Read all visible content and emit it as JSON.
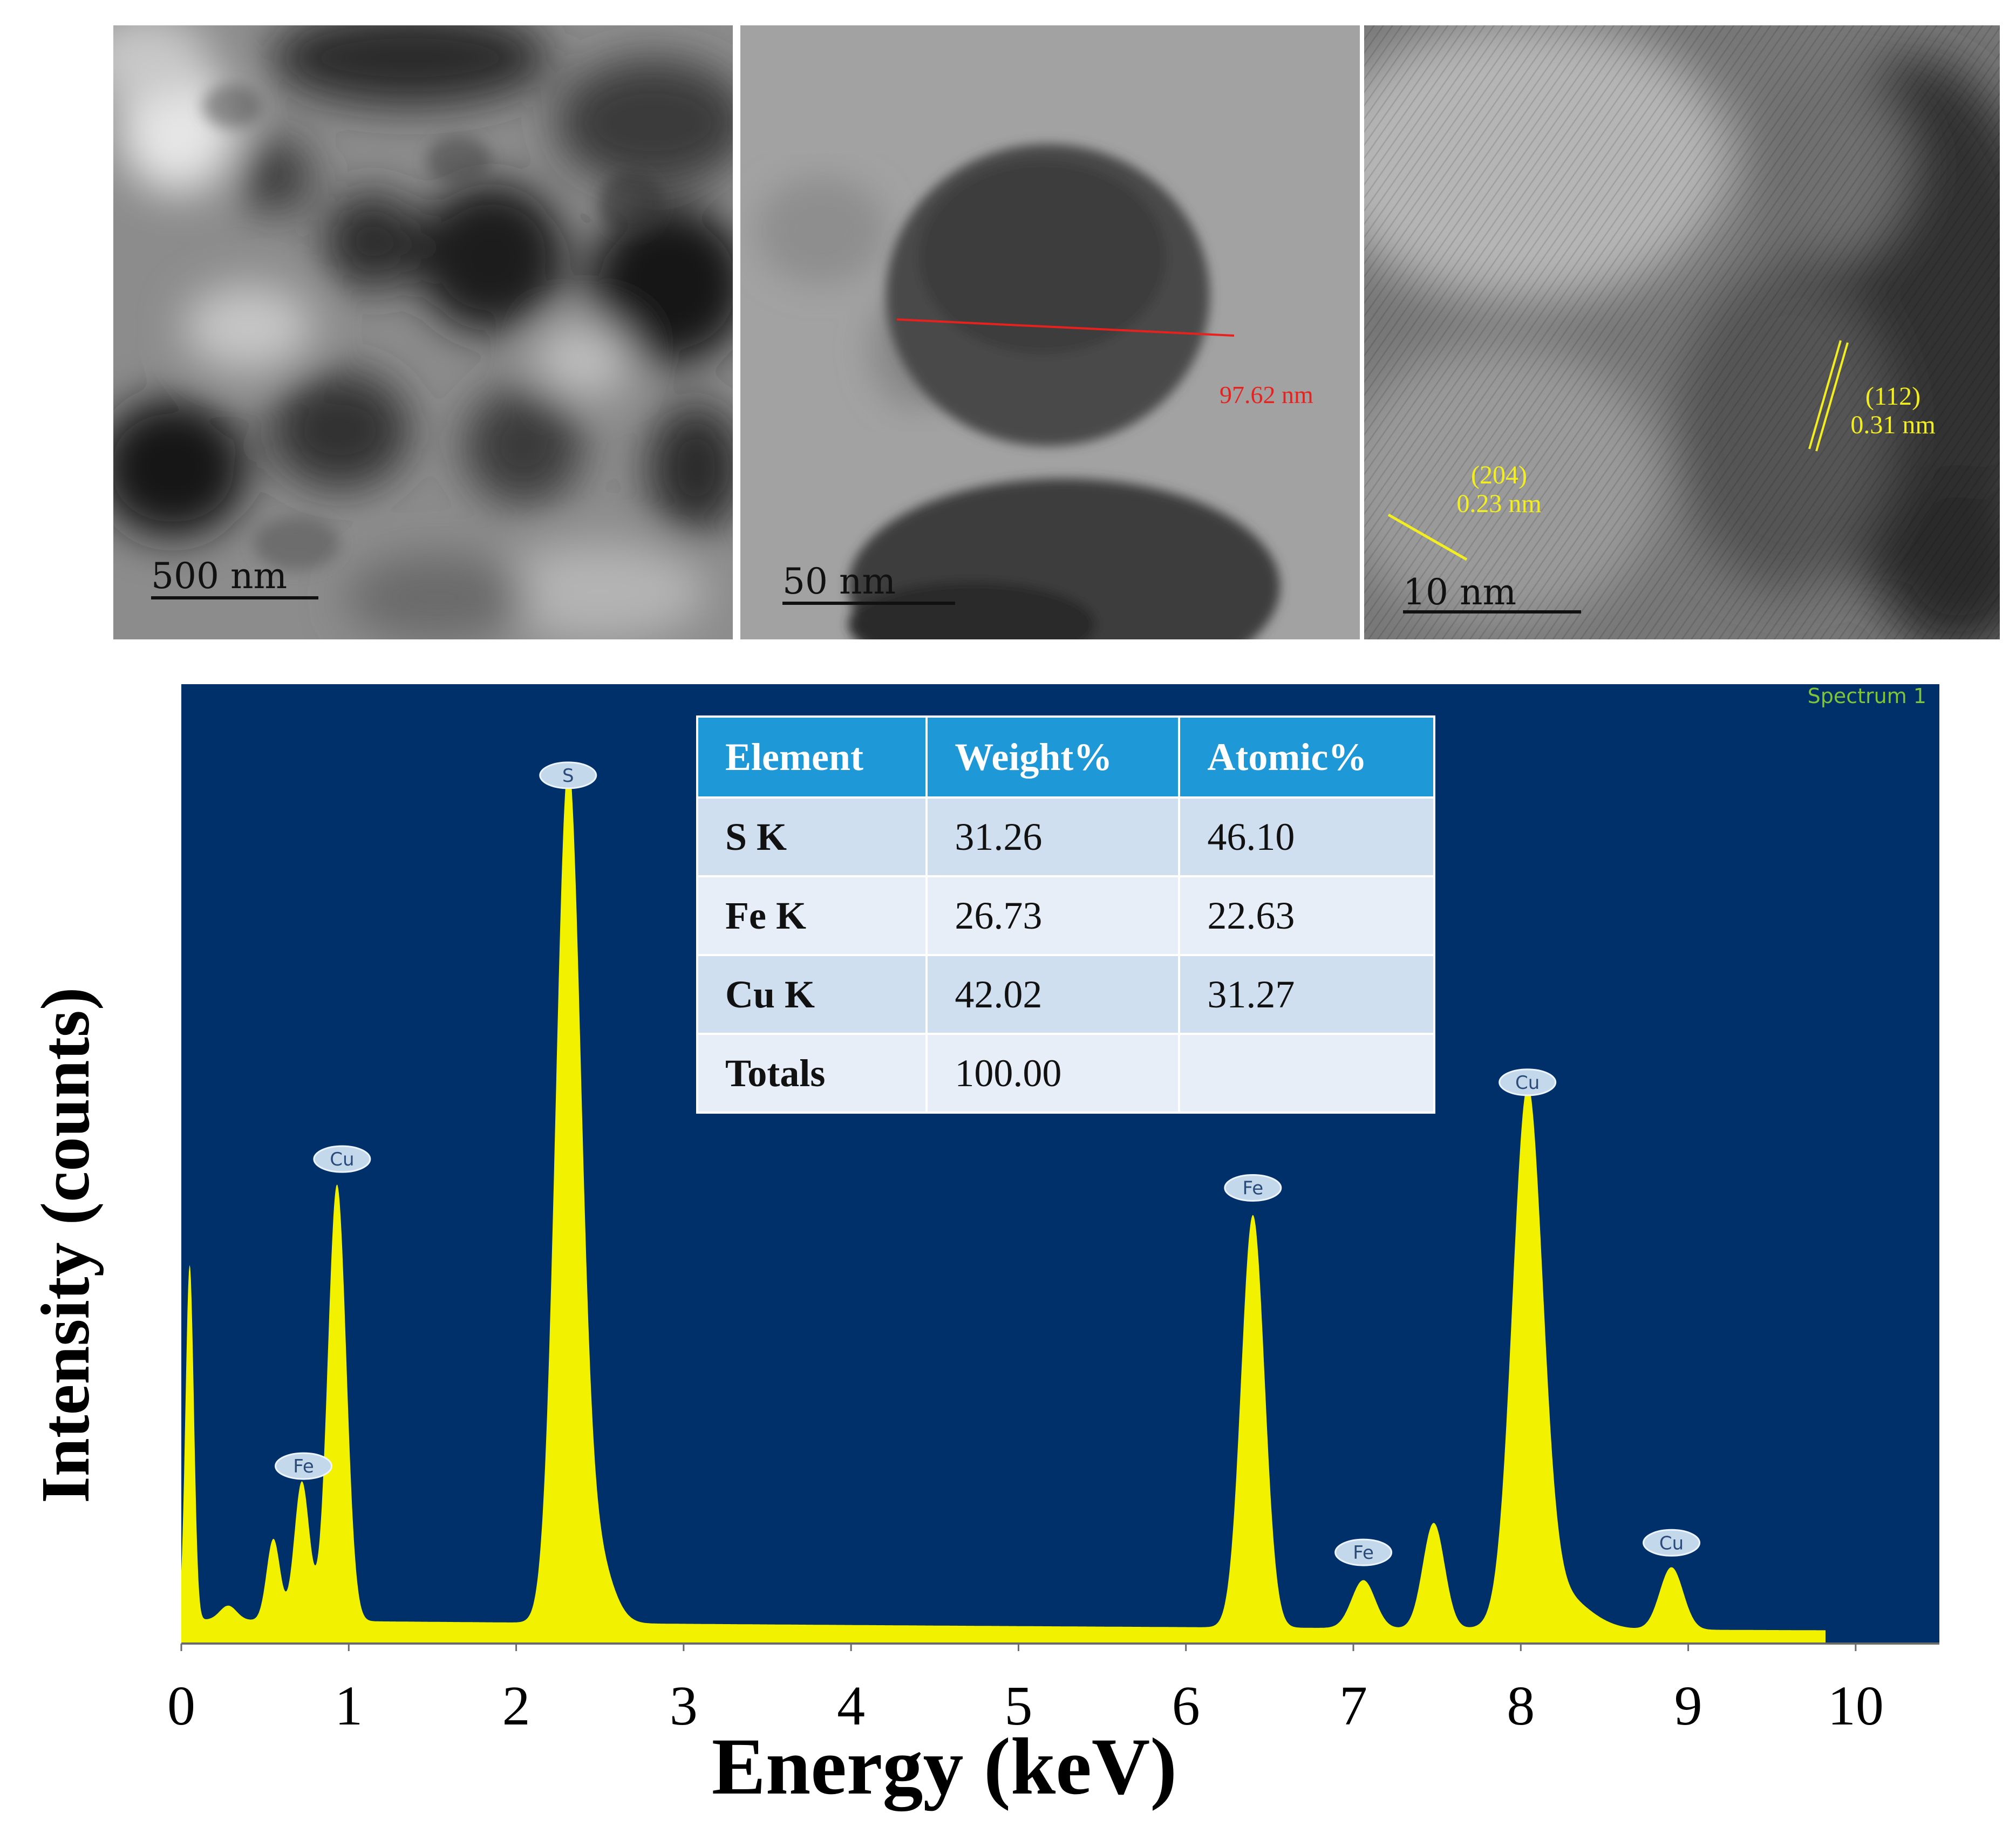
{
  "tem_panels": [
    {
      "scale_label": "500 nm"
    },
    {
      "scale_label": "50 nm",
      "measurement": "97.62 nm"
    },
    {
      "scale_label": "10 nm",
      "fringes": [
        {
          "plane": "(112)",
          "spacing": "0.31 nm"
        },
        {
          "plane": "(204)",
          "spacing": "0.23 nm"
        }
      ]
    }
  ],
  "colors": {
    "plot_bg": "#00306a",
    "spectrum": "#f2f200",
    "table_header": "#1e98d6",
    "measure_line": "#e8211e",
    "fringe": "#f2ee20"
  },
  "chart_data": {
    "type": "area",
    "title": "",
    "spectrum_label": "Spectrum 1",
    "xlabel": "Energy (keV)",
    "ylabel": "Intensity (counts)",
    "xlim": [
      0,
      10.5
    ],
    "ylim": [
      0,
      100
    ],
    "x_ticks": [
      0,
      1,
      2,
      3,
      4,
      5,
      6,
      7,
      8,
      9,
      10
    ],
    "grid": false,
    "legend": "none",
    "baseline": 2,
    "spectrum_end": 9.82,
    "peaks": [
      {
        "x": 0.05,
        "height": 37,
        "width": 0.025
      },
      {
        "x": 0.28,
        "height": 1.5,
        "width": 0.05
      },
      {
        "x": 0.55,
        "height": 8.5,
        "width": 0.04
      },
      {
        "x": 0.72,
        "height": 14.5,
        "width": 0.045
      },
      {
        "x": 0.93,
        "height": 45.5,
        "width": 0.055
      },
      {
        "x": 2.31,
        "height": 87,
        "width": 0.075
      },
      {
        "x": 2.46,
        "height": 8,
        "width": 0.1
      },
      {
        "x": 6.4,
        "height": 43,
        "width": 0.07
      },
      {
        "x": 7.06,
        "height": 5,
        "width": 0.07
      },
      {
        "x": 7.48,
        "height": 11,
        "width": 0.065
      },
      {
        "x": 8.04,
        "height": 54,
        "width": 0.09
      },
      {
        "x": 8.2,
        "height": 4,
        "width": 0.18
      },
      {
        "x": 8.9,
        "height": 6.5,
        "width": 0.07
      }
    ],
    "peak_labels": [
      {
        "text": "Cu",
        "x": 0.96,
        "y": 50.5
      },
      {
        "text": "Fe",
        "x": 0.73,
        "y": 18.5
      },
      {
        "text": "S",
        "x": 2.31,
        "y": 90.5
      },
      {
        "text": "Fe",
        "x": 6.4,
        "y": 47.5
      },
      {
        "text": "Fe",
        "x": 7.06,
        "y": 9.5
      },
      {
        "text": "Cu",
        "x": 8.04,
        "y": 58.5
      },
      {
        "text": "Cu",
        "x": 8.9,
        "y": 10.5
      }
    ],
    "table": {
      "headers": [
        "Element",
        "Weight%",
        "Atomic%"
      ],
      "rows": [
        [
          "S K",
          "31.26",
          "46.10"
        ],
        [
          "Fe K",
          "26.73",
          "22.63"
        ],
        [
          "Cu K",
          "42.02",
          "31.27"
        ],
        [
          "Totals",
          "100.00",
          ""
        ]
      ]
    }
  }
}
